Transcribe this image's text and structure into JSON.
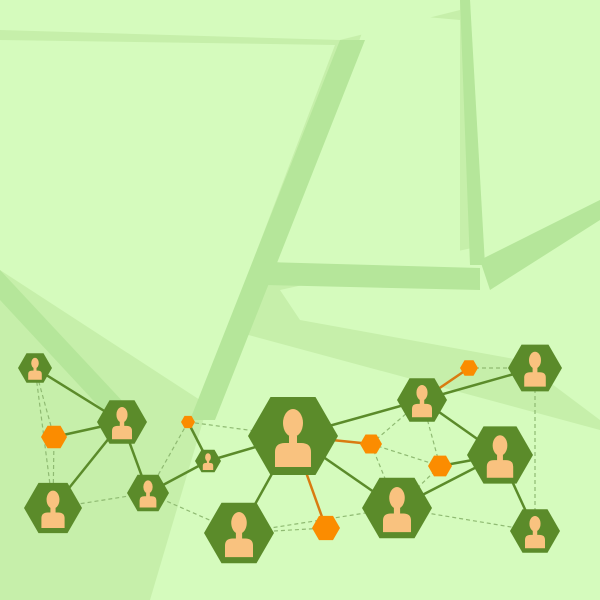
{
  "colors": {
    "background": "#c6efaa",
    "background_stripe": "#d5fbbd",
    "background_band": "#b5e69a",
    "hexagon": "#5b8b2a",
    "person": "#f9c27f",
    "connector_node": "#fb8c00",
    "solid_edge": "#5b8b2a",
    "orange_edge": "#d97b10",
    "dashed_edge": "#8fba72"
  },
  "icons": {
    "person_node": "person-icon",
    "connector_node": "hexagon-icon"
  }
}
